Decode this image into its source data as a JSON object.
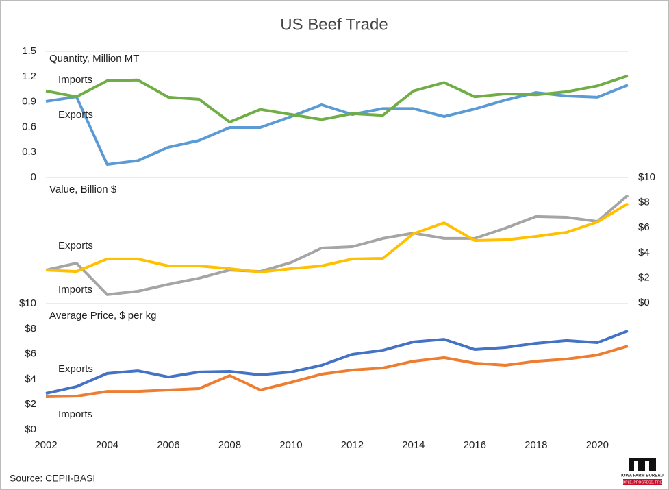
{
  "title": "US Beef Trade",
  "source": "Source: CEPII-BASI",
  "logo": {
    "name": "IOWA FARM BUREAU",
    "tagline": "PEOPLE. PROGRESS. PRIDE."
  },
  "chart_data": [
    {
      "type": "line",
      "title": "Quantity, Million MT",
      "yaxis": "left",
      "x": [
        2002,
        2003,
        2004,
        2005,
        2006,
        2007,
        2008,
        2009,
        2010,
        2011,
        2012,
        2013,
        2014,
        2015,
        2016,
        2017,
        2018,
        2019,
        2020,
        2021
      ],
      "xlim": [
        2002,
        2021
      ],
      "ylim": [
        0,
        1.5
      ],
      "yticks": [
        0,
        0.3,
        0.6,
        0.9,
        1.2,
        1.5
      ],
      "series": [
        {
          "name": "Exports",
          "color": "#5b9bd5",
          "values": [
            0.905,
            0.96,
            0.155,
            0.2,
            0.36,
            0.44,
            0.595,
            0.595,
            0.725,
            0.865,
            0.75,
            0.82,
            0.82,
            0.725,
            0.815,
            0.92,
            1.01,
            0.97,
            0.955,
            1.1
          ]
        },
        {
          "name": "Imports",
          "color": "#70ad47",
          "values": [
            1.03,
            0.96,
            1.15,
            1.16,
            0.955,
            0.93,
            0.66,
            0.81,
            0.75,
            0.69,
            0.76,
            0.74,
            1.03,
            1.13,
            0.96,
            0.995,
            0.985,
            1.02,
            1.09,
            1.21
          ]
        }
      ]
    },
    {
      "type": "line",
      "title": "Value, Billion $",
      "yaxis": "right",
      "x": [
        2002,
        2003,
        2004,
        2005,
        2006,
        2007,
        2008,
        2009,
        2010,
        2011,
        2012,
        2013,
        2014,
        2015,
        2016,
        2017,
        2018,
        2019,
        2020,
        2021
      ],
      "xlim": [
        2002,
        2021
      ],
      "ylim": [
        0,
        10
      ],
      "yticks": [
        {
          "value": 0,
          "label": "$0"
        },
        {
          "value": 2,
          "label": "$2"
        },
        {
          "value": 4,
          "label": "$4"
        },
        {
          "value": 6,
          "label": "$6"
        },
        {
          "value": 8,
          "label": "$8"
        },
        {
          "value": 10,
          "label": "$10"
        }
      ],
      "series": [
        {
          "name": "Exports",
          "color": "#a5a5a5",
          "values": [
            2.62,
            3.17,
            0.66,
            0.93,
            1.48,
            1.97,
            2.62,
            2.51,
            3.22,
            4.37,
            4.48,
            5.14,
            5.57,
            5.14,
            5.14,
            5.96,
            6.89,
            6.83,
            6.5,
            8.58
          ]
        },
        {
          "name": "Imports",
          "color": "#ffc000",
          "values": [
            2.62,
            2.51,
            3.5,
            3.5,
            2.95,
            2.95,
            2.73,
            2.46,
            2.73,
            2.95,
            3.5,
            3.55,
            5.52,
            6.39,
            4.97,
            5.03,
            5.3,
            5.63,
            6.45,
            7.92
          ]
        }
      ]
    },
    {
      "type": "line",
      "title": "Average Price, $ per kg",
      "yaxis": "left",
      "x": [
        2002,
        2003,
        2004,
        2005,
        2006,
        2007,
        2008,
        2009,
        2010,
        2011,
        2012,
        2013,
        2014,
        2015,
        2016,
        2017,
        2018,
        2019,
        2020,
        2021
      ],
      "xlim": [
        2002,
        2021
      ],
      "xticks": [
        2002,
        2004,
        2006,
        2008,
        2010,
        2012,
        2014,
        2016,
        2018,
        2020
      ],
      "ylim": [
        0,
        10
      ],
      "yticks": [
        {
          "value": 0,
          "label": "$0"
        },
        {
          "value": 2,
          "label": "$2"
        },
        {
          "value": 4,
          "label": "$4"
        },
        {
          "value": 6,
          "label": "$6"
        },
        {
          "value": 8,
          "label": "$8"
        },
        {
          "value": 10,
          "label": "$10"
        }
      ],
      "series": [
        {
          "name": "Exports",
          "color": "#4472c4",
          "values": [
            2.88,
            3.42,
            4.46,
            4.67,
            4.18,
            4.57,
            4.62,
            4.35,
            4.57,
            5.11,
            5.98,
            6.3,
            6.96,
            7.17,
            6.36,
            6.52,
            6.85,
            7.07,
            6.9,
            7.83
          ]
        },
        {
          "name": "Imports",
          "color": "#ed7d31",
          "values": [
            2.61,
            2.66,
            3.04,
            3.04,
            3.15,
            3.26,
            4.29,
            3.15,
            3.75,
            4.4,
            4.73,
            4.89,
            5.43,
            5.71,
            5.27,
            5.11,
            5.43,
            5.6,
            5.92,
            6.63
          ]
        }
      ]
    }
  ]
}
